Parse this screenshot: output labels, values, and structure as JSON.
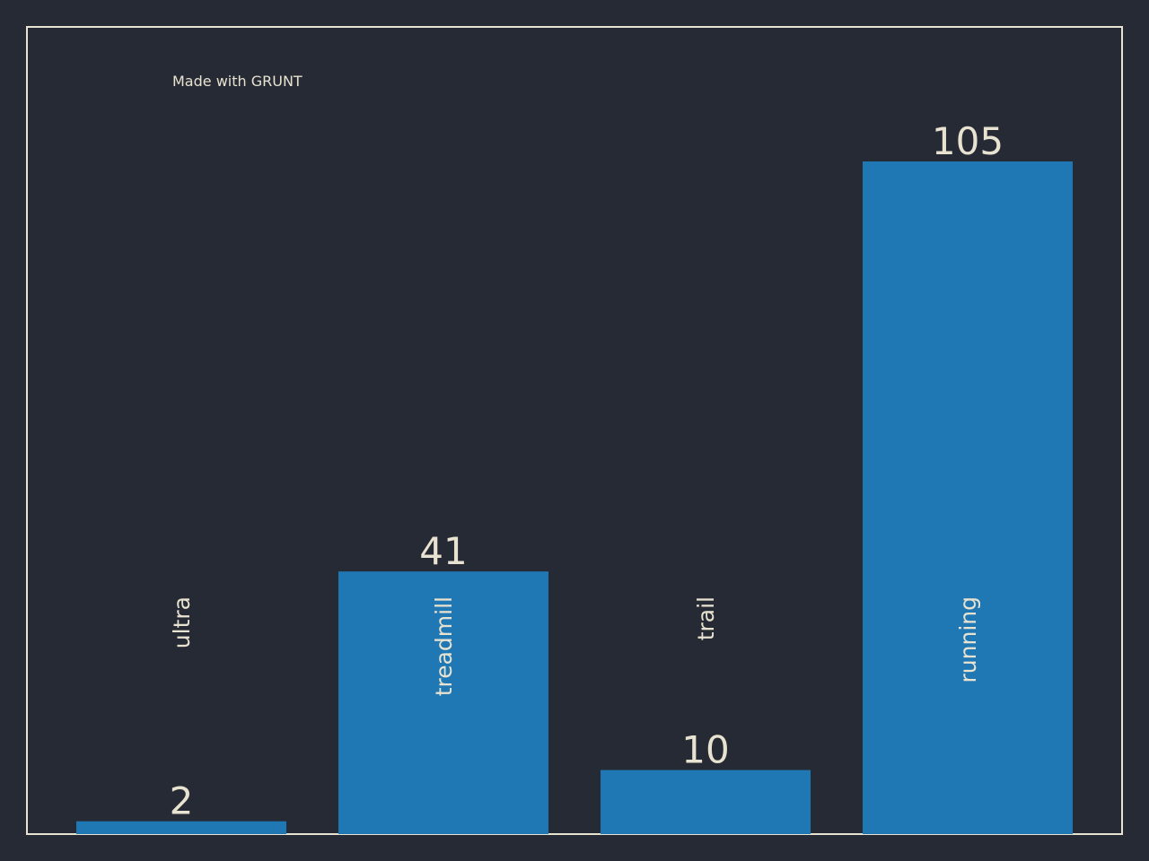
{
  "chart_data": {
    "type": "bar",
    "annotation": "Made with GRUNT",
    "categories": [
      "ultra",
      "treadmill",
      "trail",
      "running"
    ],
    "values": [
      2,
      41,
      10,
      105
    ],
    "color": "#1f77b4",
    "ylim": [
      0,
      126
    ],
    "grid": false
  }
}
